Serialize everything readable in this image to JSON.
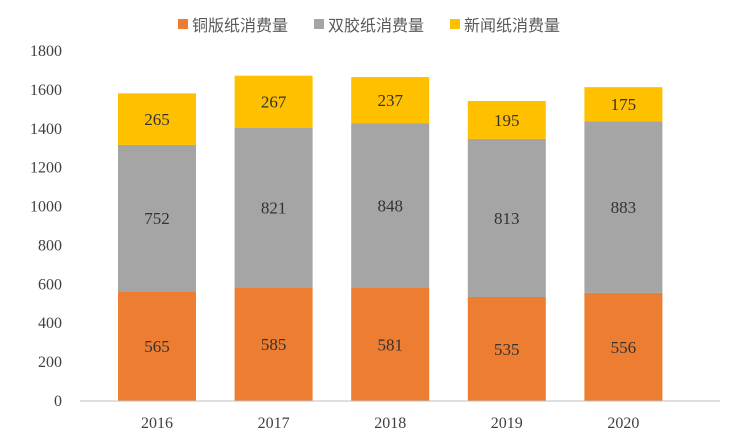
{
  "chart_data": {
    "type": "bar",
    "stacked": true,
    "categories": [
      "2016",
      "2017",
      "2018",
      "2019",
      "2020"
    ],
    "series": [
      {
        "name": "铜版纸消费量",
        "values": [
          565,
          585,
          581,
          535,
          556
        ],
        "color": "#ED7D31"
      },
      {
        "name": "双胶纸消费量",
        "values": [
          752,
          821,
          848,
          813,
          883
        ],
        "color": "#A5A5A5"
      },
      {
        "name": "新闻纸消费量",
        "values": [
          265,
          267,
          237,
          195,
          175
        ],
        "color": "#FFC000"
      }
    ],
    "ylim": [
      0,
      1800
    ],
    "yticks": [
      0,
      200,
      400,
      600,
      800,
      1000,
      1200,
      1400,
      1600,
      1800
    ],
    "grid": false,
    "legend": "top"
  }
}
